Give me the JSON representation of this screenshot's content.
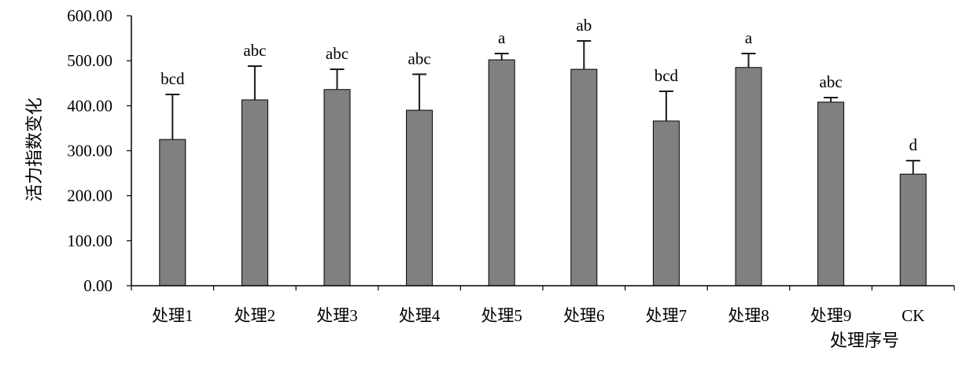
{
  "chart_data": {
    "type": "bar",
    "categories": [
      "处理1",
      "处理2",
      "处理3",
      "处理4",
      "处理5",
      "处理6",
      "处理7",
      "处理8",
      "处理9",
      "CK"
    ],
    "values": [
      325,
      413,
      436,
      390,
      502,
      481,
      366,
      485,
      408,
      248
    ],
    "errors": [
      100,
      75,
      45,
      80,
      14,
      63,
      66,
      31,
      10,
      30
    ],
    "significance_labels": [
      "bcd",
      "abc",
      "abc",
      "abc",
      "a",
      "ab",
      "bcd",
      "a",
      "abc",
      "d"
    ],
    "xlabel": "处理序号",
    "ylabel": "活力指数变化",
    "ylim": [
      0,
      600
    ],
    "yticks": [
      0,
      100,
      200,
      300,
      400,
      500,
      600
    ],
    "ytick_labels": [
      "0.00",
      "100.00",
      "200.00",
      "300.00",
      "400.00",
      "500.00",
      "600.00"
    ],
    "grid": false,
    "colors": {
      "bar": "#808080",
      "bar_outline": "#000000",
      "error_bar": "#1a1a1a",
      "axis": "#000000"
    }
  }
}
